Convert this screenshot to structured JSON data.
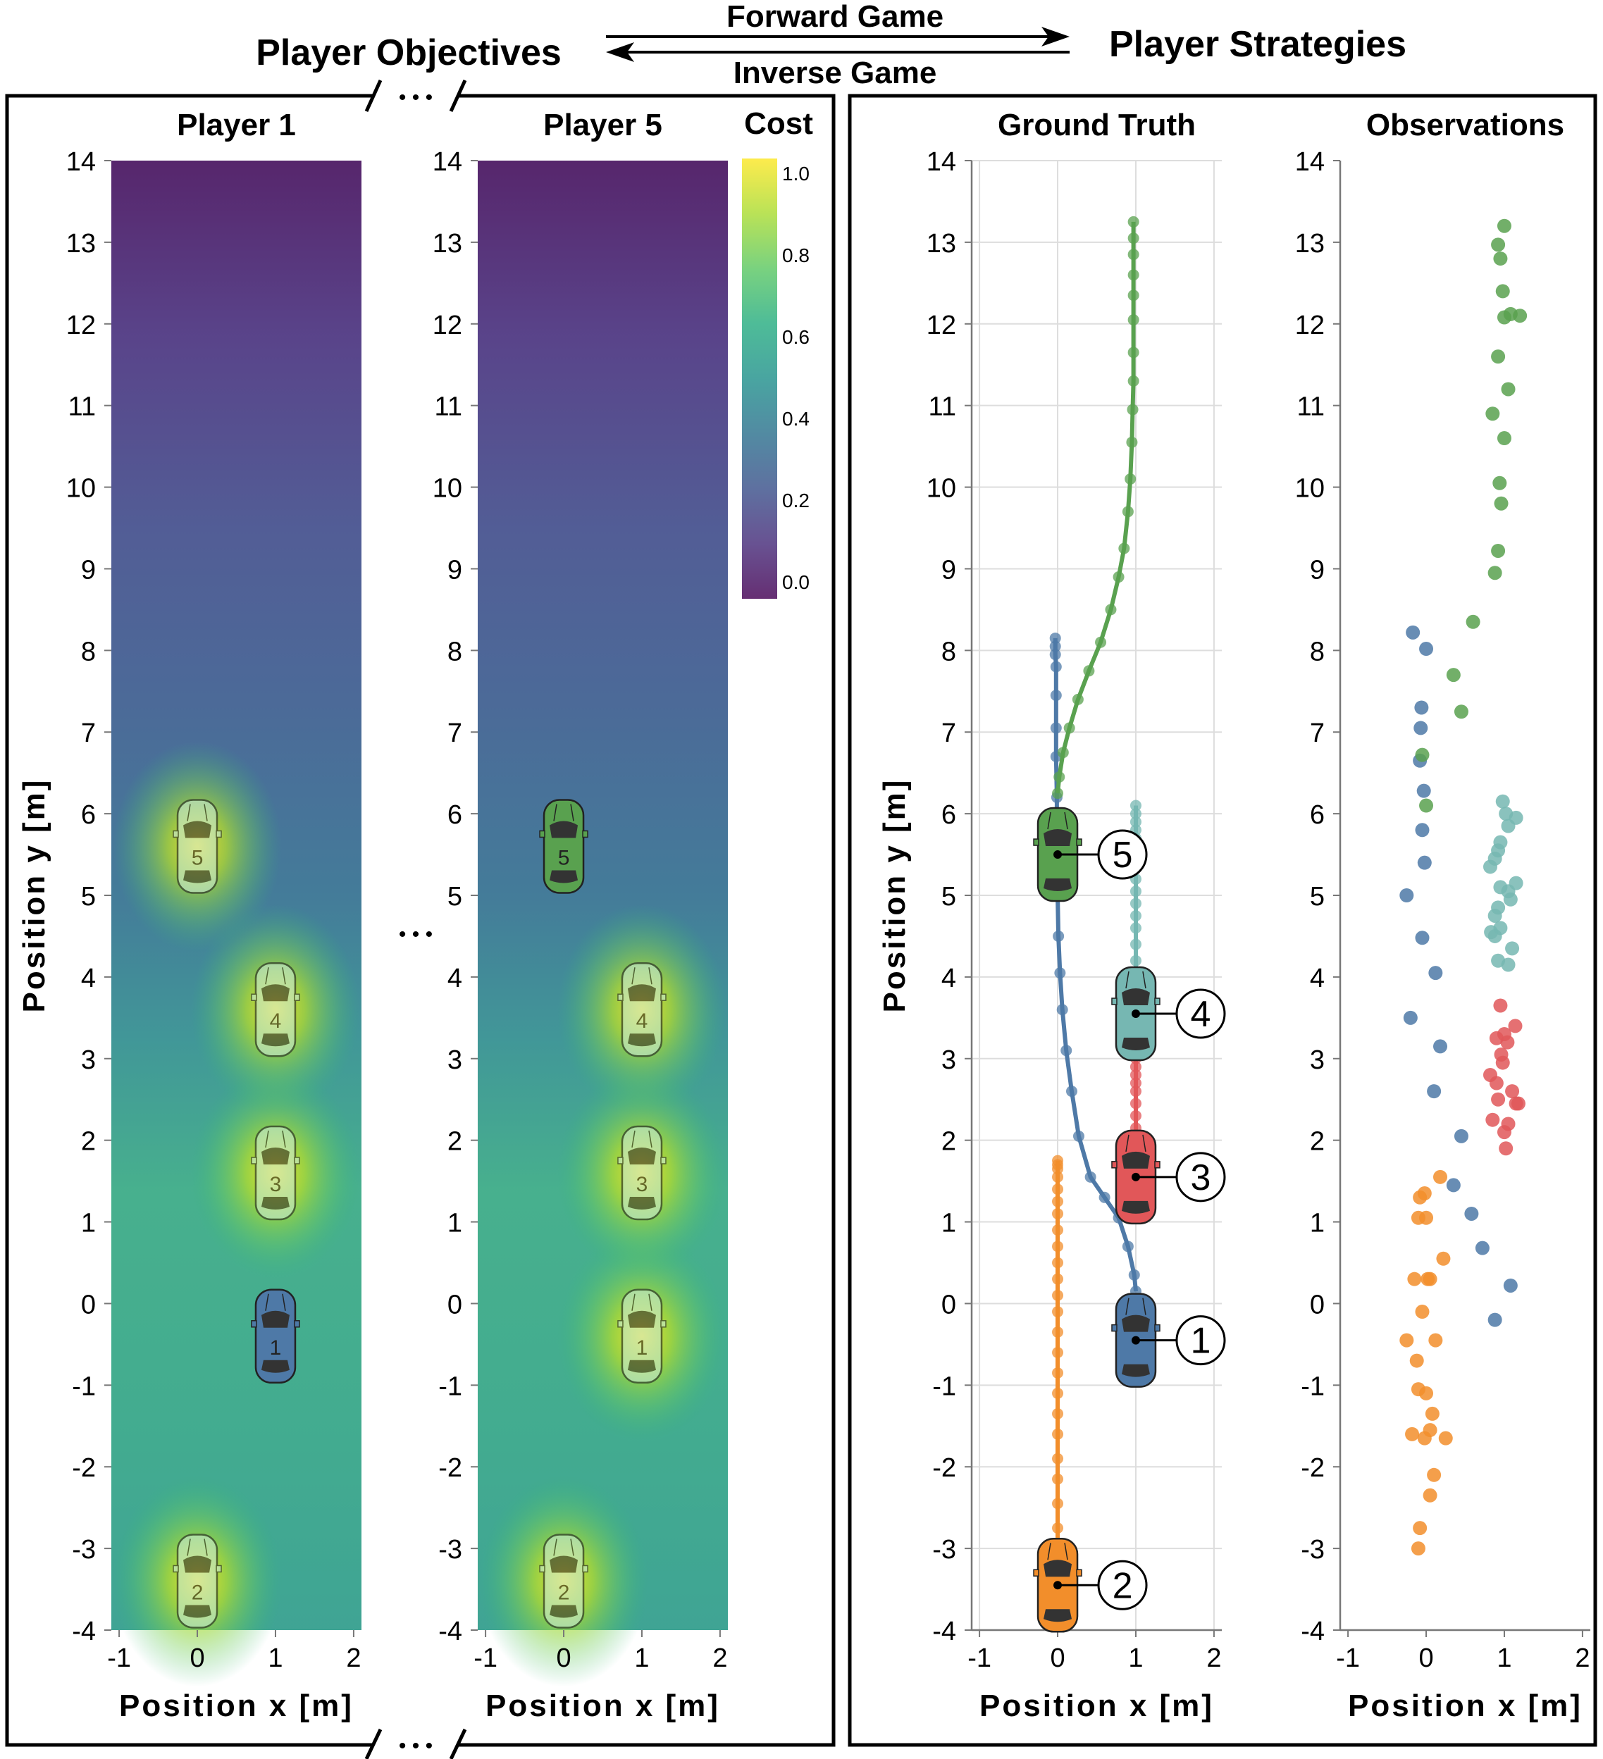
{
  "header": {
    "left_title": "Player Objectives",
    "right_title": "Player Strategies",
    "forward_label": "Forward Game",
    "inverse_label": "Inverse Game",
    "ellipsis": "• • •"
  },
  "colors": {
    "player1": "#4e79a7",
    "player2": "#f28e2b",
    "player3": "#e15759",
    "player4": "#76b7b2",
    "player5": "#59a14f",
    "grid": "#dddddd",
    "axis": "#777777",
    "frame": "#000000"
  },
  "colorbar": {
    "title": "Cost",
    "ticks": [
      "0.0",
      "0.2",
      "0.4",
      "0.6",
      "0.8",
      "1.0"
    ]
  },
  "chart_data": [
    {
      "type": "heatmap",
      "title": "Player 1",
      "xlabel": "Position x [m]",
      "ylabel": "Position y [m]",
      "xlim": [
        -1.1,
        2.1
      ],
      "ylim": [
        -4,
        14
      ],
      "xticks": [
        "-1",
        "0",
        "1",
        "2"
      ],
      "yticks": [
        "-4",
        "-3",
        "-2",
        "-1",
        "0",
        "1",
        "2",
        "3",
        "4",
        "5",
        "6",
        "7",
        "8",
        "9",
        "10",
        "11",
        "12",
        "13",
        "14"
      ],
      "value_range": [
        0,
        1
      ],
      "ego_player": 1,
      "cars": [
        {
          "player": "1",
          "x": 1,
          "y": -0.4,
          "ego": true
        },
        {
          "player": "2",
          "x": 0,
          "y": -3.4,
          "ego": false
        },
        {
          "player": "3",
          "x": 1,
          "y": 1.6,
          "ego": false
        },
        {
          "player": "4",
          "x": 1,
          "y": 3.6,
          "ego": false
        },
        {
          "player": "5",
          "x": 0,
          "y": 5.6,
          "ego": false
        }
      ]
    },
    {
      "type": "heatmap",
      "title": "Player 5",
      "xlabel": "Position x [m]",
      "ylabel": "",
      "xlim": [
        -1.1,
        2.1
      ],
      "ylim": [
        -4,
        14
      ],
      "xticks": [
        "-1",
        "0",
        "1",
        "2"
      ],
      "yticks": [
        "-4",
        "-3",
        "-2",
        "-1",
        "0",
        "1",
        "2",
        "3",
        "4",
        "5",
        "6",
        "7",
        "8",
        "9",
        "10",
        "11",
        "12",
        "13",
        "14"
      ],
      "value_range": [
        0,
        1
      ],
      "ego_player": 5,
      "cars": [
        {
          "player": "1",
          "x": 1,
          "y": -0.4,
          "ego": false
        },
        {
          "player": "2",
          "x": 0,
          "y": -3.4,
          "ego": false
        },
        {
          "player": "3",
          "x": 1,
          "y": 1.6,
          "ego": false
        },
        {
          "player": "4",
          "x": 1,
          "y": 3.6,
          "ego": false
        },
        {
          "player": "5",
          "x": 0,
          "y": 5.6,
          "ego": true
        }
      ]
    },
    {
      "type": "line",
      "title": "Ground Truth",
      "xlabel": "Position x [m]",
      "ylabel": "Position y [m]",
      "xlim": [
        -1.1,
        2.1
      ],
      "ylim": [
        -4,
        14
      ],
      "xticks": [
        "-1",
        "0",
        "1",
        "2"
      ],
      "yticks": [
        "-4",
        "-3",
        "-2",
        "-1",
        "0",
        "1",
        "2",
        "3",
        "4",
        "5",
        "6",
        "7",
        "8",
        "9",
        "10",
        "11",
        "12",
        "13",
        "14"
      ],
      "grid": true,
      "series": [
        {
          "player": "1",
          "x": [
            1.0,
            0.98,
            0.9,
            0.78,
            0.6,
            0.42,
            0.27,
            0.18,
            0.11,
            0.06,
            0.03,
            0.01,
            0.0,
            0.0,
            -0.01,
            -0.01,
            -0.02,
            -0.02,
            -0.02,
            -0.02,
            -0.03,
            -0.03,
            -0.03
          ],
          "y": [
            0.15,
            0.35,
            0.7,
            1.05,
            1.3,
            1.55,
            2.05,
            2.6,
            3.1,
            3.6,
            4.05,
            4.5,
            5.0,
            5.5,
            5.9,
            6.2,
            6.7,
            7.05,
            7.45,
            7.8,
            7.95,
            8.05,
            8.15
          ]
        },
        {
          "player": "2",
          "x": [
            0,
            0,
            0,
            0,
            0,
            0,
            0,
            0,
            0,
            0,
            0,
            0,
            0,
            0,
            0,
            0,
            0,
            0,
            0,
            0,
            0,
            0,
            0,
            0,
            0
          ],
          "y": [
            -3.4,
            -3.05,
            -2.75,
            -2.45,
            -2.15,
            -1.9,
            -1.6,
            -1.35,
            -1.1,
            -0.85,
            -0.6,
            -0.35,
            -0.1,
            0.1,
            0.3,
            0.5,
            0.7,
            0.9,
            1.1,
            1.25,
            1.4,
            1.55,
            1.65,
            1.7,
            1.75
          ]
        },
        {
          "player": "3",
          "x": [
            1,
            1,
            1,
            1,
            1,
            1,
            1,
            1,
            1,
            1,
            1,
            1,
            1
          ],
          "y": [
            1.7,
            1.85,
            2.0,
            2.15,
            2.3,
            2.45,
            2.6,
            2.7,
            2.8,
            2.9,
            3.0,
            3.1,
            3.2
          ]
        },
        {
          "player": "4",
          "x": [
            1,
            1,
            1,
            1,
            1,
            1,
            1,
            1,
            1,
            1,
            1,
            1,
            1,
            1,
            1,
            1,
            1,
            1
          ],
          "y": [
            3.6,
            3.8,
            4.0,
            4.2,
            4.4,
            4.6,
            4.75,
            4.9,
            5.05,
            5.2,
            5.35,
            5.5,
            5.6,
            5.7,
            5.8,
            5.9,
            6.0,
            6.1
          ]
        },
        {
          "player": "5",
          "x": [
            0.0,
            0.02,
            0.07,
            0.15,
            0.26,
            0.4,
            0.55,
            0.68,
            0.78,
            0.85,
            0.9,
            0.93,
            0.95,
            0.96,
            0.97,
            0.97,
            0.97,
            0.97,
            0.97,
            0.97,
            0.97,
            0.97
          ],
          "y": [
            6.25,
            6.45,
            6.75,
            7.05,
            7.4,
            7.75,
            8.1,
            8.5,
            8.9,
            9.25,
            9.7,
            10.1,
            10.55,
            10.95,
            11.3,
            11.65,
            12.05,
            12.35,
            12.6,
            12.85,
            13.05,
            13.25
          ]
        }
      ],
      "cars": [
        {
          "player": "1",
          "x": 1,
          "y": -0.45,
          "label": "1"
        },
        {
          "player": "2",
          "x": 0,
          "y": -3.45,
          "label": "2"
        },
        {
          "player": "3",
          "x": 1,
          "y": 1.55,
          "label": "3"
        },
        {
          "player": "4",
          "x": 1,
          "y": 3.55,
          "label": "4"
        },
        {
          "player": "5",
          "x": 0,
          "y": 5.5,
          "label": "5"
        }
      ]
    },
    {
      "type": "scatter",
      "title": "Observations",
      "xlabel": "Position x [m]",
      "ylabel": "",
      "xlim": [
        -1.1,
        2.1
      ],
      "ylim": [
        -4,
        14
      ],
      "xticks": [
        "-1",
        "0",
        "1",
        "2"
      ],
      "yticks": [
        "-4",
        "-3",
        "-2",
        "-1",
        "0",
        "1",
        "2",
        "3",
        "4",
        "5",
        "6",
        "7",
        "8",
        "9",
        "10",
        "11",
        "12",
        "13",
        "14"
      ],
      "grid": false,
      "series": [
        {
          "player": "1",
          "x": [
            0.88,
            1.08,
            0.72,
            0.58,
            0.35,
            0.45,
            0.1,
            0.18,
            -0.25,
            0.12,
            -0.2,
            -0.05,
            -0.02,
            -0.05,
            -0.03,
            -0.08,
            -0.07,
            -0.06,
            -0.17,
            0.0
          ],
          "y": [
            -0.2,
            0.22,
            0.68,
            1.1,
            1.45,
            2.05,
            2.6,
            3.15,
            5.0,
            4.05,
            3.5,
            4.48,
            5.4,
            5.8,
            6.28,
            6.65,
            7.05,
            7.3,
            8.22,
            8.02
          ]
        },
        {
          "player": "2",
          "x": [
            -0.1,
            -0.08,
            0.05,
            0.1,
            -0.02,
            0.05,
            -0.18,
            -0.1,
            0.0,
            0.08,
            -0.12,
            0.12,
            -0.25,
            0.25,
            -0.05,
            0.02,
            0.05,
            -0.15,
            -0.1,
            -0.08,
            0.0,
            0.22,
            0.18,
            -0.02
          ],
          "y": [
            -3.0,
            -2.75,
            -2.35,
            -2.1,
            -1.65,
            -1.55,
            -1.6,
            -1.05,
            -1.1,
            -1.35,
            -0.7,
            -0.45,
            -0.45,
            -1.65,
            -0.1,
            0.3,
            0.3,
            0.3,
            1.05,
            1.3,
            1.05,
            0.55,
            1.55,
            1.35
          ]
        },
        {
          "player": "3",
          "x": [
            1.02,
            1.0,
            0.85,
            1.05,
            1.15,
            0.92,
            1.18,
            0.9,
            0.98,
            1.1,
            0.82,
            0.96,
            1.04,
            0.9,
            1.0,
            1.14,
            0.95
          ],
          "y": [
            1.9,
            2.1,
            2.25,
            2.2,
            2.45,
            2.5,
            2.45,
            2.7,
            2.95,
            2.6,
            2.8,
            3.05,
            3.2,
            3.25,
            3.3,
            3.4,
            3.65
          ]
        },
        {
          "player": "4",
          "x": [
            1.05,
            0.92,
            1.1,
            0.88,
            0.95,
            0.83,
            0.88,
            0.92,
            1.08,
            0.95,
            1.15,
            1.05,
            0.82,
            0.88,
            0.92,
            0.95,
            1.05,
            1.15,
            1.02,
            0.98
          ],
          "y": [
            4.15,
            4.2,
            4.35,
            4.5,
            4.6,
            4.55,
            4.75,
            4.85,
            4.95,
            5.1,
            5.15,
            5.05,
            5.35,
            5.45,
            5.55,
            5.65,
            5.85,
            5.95,
            6.0,
            6.15
          ]
        },
        {
          "player": "5",
          "x": [
            0.0,
            -0.05,
            0.45,
            0.35,
            0.6,
            0.88,
            0.92,
            0.96,
            0.94,
            0.85,
            1.0,
            0.92,
            1.05,
            0.98,
            1.0,
            1.08,
            1.2,
            0.95,
            0.92,
            1.0
          ],
          "y": [
            6.1,
            6.72,
            7.25,
            7.7,
            8.35,
            8.95,
            9.22,
            9.8,
            10.05,
            10.9,
            10.6,
            11.6,
            11.2,
            12.4,
            12.08,
            12.12,
            12.1,
            12.8,
            12.97,
            13.2
          ]
        }
      ]
    }
  ]
}
